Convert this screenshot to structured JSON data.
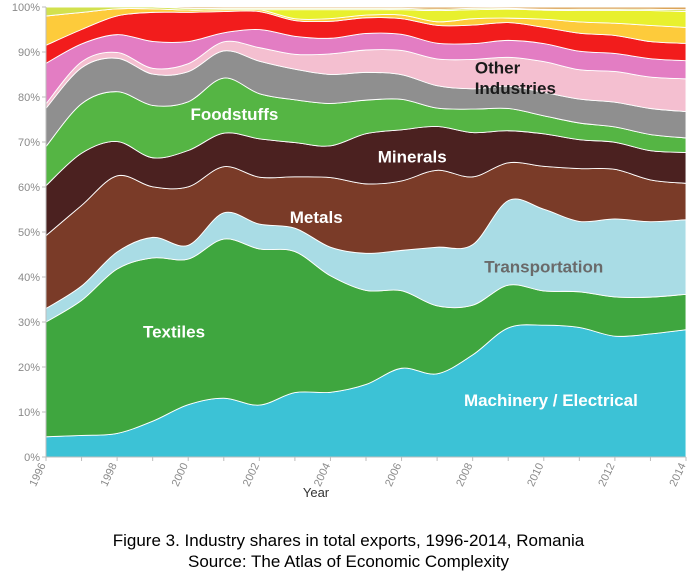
{
  "chart_data": {
    "type": "area",
    "stacked": "percent",
    "x": [
      1996,
      1997,
      1998,
      1999,
      2000,
      2001,
      2002,
      2003,
      2004,
      2005,
      2006,
      2007,
      2008,
      2009,
      2010,
      2011,
      2012,
      2013,
      2014
    ],
    "x_ticks": [
      "1996",
      "1998",
      "2000",
      "2002",
      "2004",
      "2006",
      "2008",
      "2010",
      "2012",
      "2014"
    ],
    "y_ticks": [
      "0%",
      "10%",
      "20%",
      "30%",
      "40%",
      "50%",
      "60%",
      "70%",
      "80%",
      "90%",
      "100%"
    ],
    "xlabel": "Year",
    "ylabel": "",
    "ylim": [
      0,
      100
    ],
    "grid": true,
    "legend": "none",
    "series": [
      {
        "key": "machinery",
        "name": "Machinery / Electrical",
        "color": "#3CC2D6",
        "values": [
          4.5,
          4.8,
          5.3,
          8.0,
          11.8,
          13.0,
          11.5,
          14.3,
          14.5,
          16.2,
          19.8,
          18.6,
          22.6,
          29.0,
          29.2,
          28.7,
          26.8,
          27.4,
          28.0
        ]
      },
      {
        "key": "textiles",
        "name": "Textiles",
        "color": "#3FA63F",
        "values": [
          25.5,
          30.0,
          36.9,
          36.5,
          32.9,
          35.2,
          34.6,
          31.3,
          26.1,
          21.0,
          17.3,
          15.2,
          11.0,
          9.6,
          7.6,
          7.9,
          8.7,
          8.2,
          7.8
        ]
      },
      {
        "key": "transportation",
        "name": "Transportation",
        "color": "#A9DCE5",
        "values": [
          3.0,
          3.2,
          3.8,
          4.6,
          3.1,
          5.8,
          5.5,
          5.2,
          6.4,
          8.3,
          9.0,
          13.1,
          13.4,
          19.0,
          18.1,
          15.6,
          17.3,
          16.8,
          16.4
        ]
      },
      {
        "key": "metals",
        "name": "Metals",
        "color": "#7A3B28",
        "values": [
          16.2,
          17.9,
          17.1,
          11.3,
          13.2,
          10.2,
          10.4,
          11.4,
          15.6,
          15.5,
          15.5,
          17.2,
          15.0,
          8.5,
          9.5,
          11.7,
          11.0,
          9.3,
          8.0
        ]
      },
      {
        "key": "minerals",
        "name": "Minerals",
        "color": "#4B2120",
        "values": [
          11.1,
          11.6,
          7.7,
          6.5,
          8.2,
          7.4,
          8.5,
          7.6,
          7.1,
          11.2,
          11.4,
          9.8,
          9.8,
          7.2,
          7.2,
          6.4,
          6.0,
          6.5,
          6.8
        ]
      },
      {
        "key": "foodstuffs",
        "name": "Foodstuffs",
        "color": "#55B544",
        "values": [
          8.7,
          11.0,
          11.2,
          11.7,
          11.0,
          12.2,
          10.0,
          9.5,
          9.5,
          7.5,
          6.8,
          4.1,
          5.2,
          5.0,
          4.0,
          3.7,
          3.4,
          3.6,
          3.2
        ]
      },
      {
        "key": "stone",
        "name": "",
        "color": "#8F8F8F",
        "values": [
          8.5,
          8.0,
          7.5,
          7.0,
          6.8,
          6.0,
          7.2,
          6.8,
          6.5,
          6.2,
          5.5,
          5.0,
          4.5,
          5.0,
          5.2,
          5.3,
          5.5,
          5.8,
          5.8
        ]
      },
      {
        "key": "plastics",
        "name": "",
        "color": "#F4BFD0",
        "values": [
          1.0,
          1.3,
          1.3,
          1.3,
          1.8,
          2.0,
          3.0,
          3.3,
          4.6,
          5.0,
          5.4,
          6.0,
          6.5,
          6.5,
          6.8,
          6.5,
          6.8,
          7.0,
          7.2
        ]
      },
      {
        "key": "chemicals",
        "name": "",
        "color": "#E37DC3",
        "values": [
          9.0,
          4.0,
          4.0,
          6.0,
          5.0,
          2.0,
          4.0,
          4.0,
          3.5,
          3.7,
          3.6,
          3.5,
          3.5,
          3.8,
          4.0,
          4.1,
          4.0,
          4.1,
          4.0
        ]
      },
      {
        "key": "oil",
        "name": "",
        "color": "#F21C1C",
        "values": [
          4.0,
          3.2,
          4.2,
          6.5,
          6.6,
          4.7,
          4.0,
          3.5,
          3.8,
          3.5,
          3.5,
          4.0,
          4.1,
          4.0,
          3.6,
          4.0,
          4.0,
          3.8,
          3.8
        ]
      },
      {
        "key": "other",
        "name": "",
        "color": "#FDCB3B",
        "values": [
          6.5,
          3.8,
          1.6,
          0.8,
          0.5,
          0.4,
          0.4,
          0.4,
          0.6,
          0.6,
          0.8,
          0.8,
          1.4,
          1.0,
          1.8,
          2.5,
          2.7,
          3.6,
          3.5
        ]
      },
      {
        "key": "wood",
        "name": "",
        "color": "#E8F02E",
        "values": [
          0.0,
          0.0,
          0.0,
          0.0,
          0.0,
          0.0,
          0.0,
          2.0,
          2.0,
          1.2,
          1.2,
          2.5,
          2.0,
          2.0,
          2.0,
          2.5,
          2.8,
          3.3,
          3.5
        ]
      },
      {
        "key": "misc",
        "name": "",
        "color": "#D2E14E",
        "values": [
          2.0,
          1.2,
          0.4,
          0.4,
          0.4,
          0.3,
          0.3,
          0.3,
          0.3,
          0.3,
          0.3,
          0.3,
          0.3,
          0.2,
          0.2,
          0.3,
          0.3,
          0.3,
          0.4
        ]
      },
      {
        "key": "animal",
        "name": "",
        "color": "#DBA45A",
        "values": [
          0.0,
          0.0,
          0.0,
          0.0,
          0.3,
          0.3,
          0.3,
          0.3,
          0.3,
          0.3,
          0.3,
          0.5,
          0.3,
          0.3,
          0.5,
          0.5,
          0.5,
          0.5,
          0.6
        ]
      },
      {
        "key": "rest",
        "name": "",
        "color": "#F0E4C2",
        "values": [
          0.0,
          0.0,
          0.0,
          0.0,
          0.0,
          0.0,
          0.0,
          0.0,
          0.0,
          0.0,
          0.0,
          0.0,
          0.0,
          0.0,
          0.0,
          0.0,
          0.0,
          0.0,
          0.0
        ]
      }
    ],
    "area_labels": [
      {
        "text": "Machinery / Electrical",
        "series": "machinery",
        "color": "#ffffff",
        "at_x": 2010.2,
        "at_y": 12.3
      },
      {
        "text": "Textiles",
        "series": "textiles",
        "color": "#ffffff",
        "at_x": 1999.6,
        "at_y": 27.6
      },
      {
        "text": "Transportation",
        "series": "transportation",
        "color": "#6a6a6a",
        "at_x": 2010.0,
        "at_y": 42.0
      },
      {
        "text": "Metals",
        "series": "metals",
        "color": "#ffffff",
        "at_x": 2003.6,
        "at_y": 53.0
      },
      {
        "text": "Minerals",
        "series": "minerals",
        "color": "#ffffff",
        "at_x": 2006.3,
        "at_y": 66.4
      },
      {
        "text": "Foodstuffs",
        "series": "foodstuffs",
        "color": "#ffffff",
        "at_x": 2001.3,
        "at_y": 75.9
      },
      {
        "text": "Other",
        "series": "",
        "color": "#1a1a1a",
        "at_x": 2008.7,
        "at_y": 86.2
      },
      {
        "text": "Industries",
        "series": "",
        "color": "#1a1a1a",
        "at_x": 2009.2,
        "at_y": 81.7
      }
    ]
  },
  "caption": {
    "line1": "Figure 3. Industry shares in total exports, 1996-2014, Romania",
    "line2": "Source: The Atlas of Economic Complexity"
  }
}
